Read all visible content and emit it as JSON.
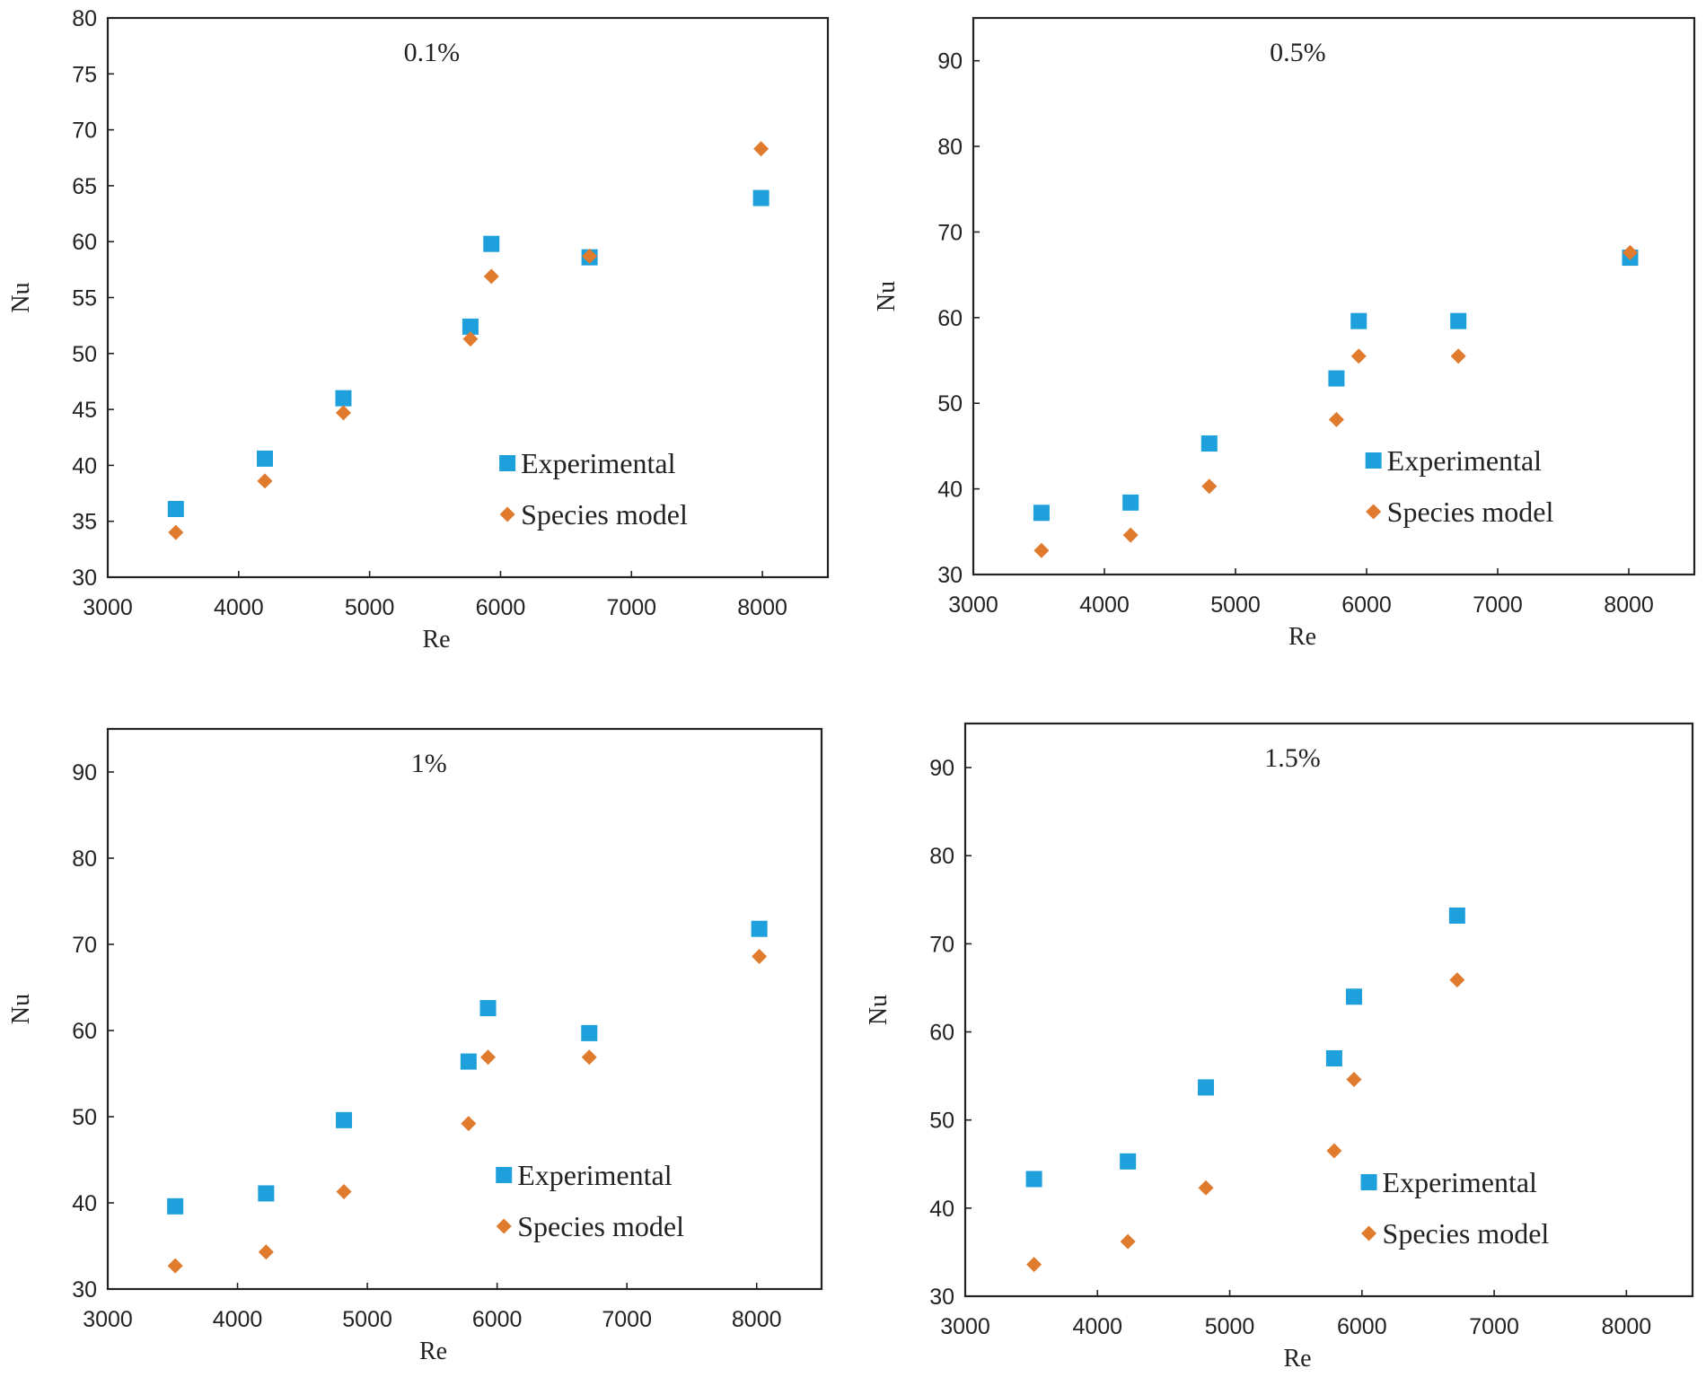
{
  "chart_data": [
    {
      "type": "scatter",
      "title": "0.1%",
      "xlabel": "Re",
      "ylabel": "Nu",
      "xlim": [
        3000,
        8500
      ],
      "ylim": [
        30,
        80
      ],
      "xticks": [
        3000,
        4000,
        5000,
        6000,
        7000,
        8000
      ],
      "yticks": [
        30,
        35,
        40,
        45,
        50,
        55,
        60,
        65,
        70,
        75,
        80
      ],
      "legend_position": "bottom-right",
      "series": [
        {
          "name": "Experimental",
          "marker": "square",
          "color": "#1ea0dc",
          "x": [
            3520,
            4200,
            4800,
            5770,
            5930,
            6680,
            7990
          ],
          "y": [
            36.1,
            40.6,
            46.0,
            52.4,
            59.8,
            58.6,
            63.9
          ]
        },
        {
          "name": "Species model",
          "marker": "diamond",
          "color": "#e07b2e",
          "x": [
            3520,
            4200,
            4800,
            5770,
            5930,
            6680,
            7990
          ],
          "y": [
            34.0,
            38.6,
            44.7,
            51.3,
            56.9,
            58.7,
            68.3
          ]
        }
      ]
    },
    {
      "type": "scatter",
      "title": "0.5%",
      "xlabel": "Re",
      "ylabel": "Nu",
      "xlim": [
        3000,
        8500
      ],
      "ylim": [
        30,
        95
      ],
      "xticks": [
        3000,
        4000,
        5000,
        6000,
        7000,
        8000
      ],
      "yticks": [
        30,
        40,
        50,
        60,
        70,
        80,
        90
      ],
      "legend_position": "bottom-right",
      "series": [
        {
          "name": "Experimental",
          "marker": "square",
          "color": "#1ea0dc",
          "x": [
            3520,
            4200,
            4800,
            5770,
            5940,
            6700,
            8010
          ],
          "y": [
            37.2,
            38.4,
            45.3,
            52.9,
            59.6,
            59.6,
            67.0
          ]
        },
        {
          "name": "Species model",
          "marker": "diamond",
          "color": "#e07b2e",
          "x": [
            3520,
            4200,
            4800,
            5770,
            5940,
            6700,
            8010
          ],
          "y": [
            32.8,
            34.6,
            40.3,
            48.1,
            55.5,
            55.5,
            67.6
          ]
        }
      ]
    },
    {
      "type": "scatter",
      "title": "1%",
      "xlabel": "Re",
      "ylabel": "Nu",
      "xlim": [
        3000,
        8500
      ],
      "ylim": [
        30,
        95
      ],
      "xticks": [
        3000,
        4000,
        5000,
        6000,
        7000,
        8000
      ],
      "yticks": [
        30,
        40,
        50,
        60,
        70,
        80,
        90
      ],
      "legend_position": "bottom-right",
      "series": [
        {
          "name": "Experimental",
          "marker": "square",
          "color": "#1ea0dc",
          "x": [
            3520,
            4220,
            4820,
            5780,
            5930,
            6710,
            8020
          ],
          "y": [
            39.6,
            41.1,
            49.6,
            56.4,
            62.6,
            59.7,
            71.8
          ]
        },
        {
          "name": "Species model",
          "marker": "diamond",
          "color": "#e07b2e",
          "x": [
            3520,
            4220,
            4820,
            5780,
            5930,
            6710,
            8020
          ],
          "y": [
            32.7,
            34.3,
            41.3,
            49.2,
            56.9,
            56.9,
            68.6
          ]
        }
      ]
    },
    {
      "type": "scatter",
      "title": "1.5%",
      "xlabel": "Re",
      "ylabel": "Nu",
      "xlim": [
        3000,
        8500
      ],
      "ylim": [
        30,
        95
      ],
      "xticks": [
        3000,
        4000,
        5000,
        6000,
        7000,
        8000
      ],
      "yticks": [
        30,
        40,
        50,
        60,
        70,
        80,
        90
      ],
      "legend_position": "bottom-right",
      "series": [
        {
          "name": "Experimental",
          "marker": "square",
          "color": "#1ea0dc",
          "x": [
            3520,
            4230,
            4820,
            5790,
            5940,
            6720
          ],
          "y": [
            43.3,
            45.3,
            53.7,
            57.0,
            64.0,
            73.2
          ]
        },
        {
          "name": "Species model",
          "marker": "diamond",
          "color": "#e07b2e",
          "x": [
            3520,
            4230,
            4820,
            5790,
            5940,
            6720
          ],
          "y": [
            33.6,
            36.2,
            42.3,
            46.5,
            54.6,
            65.9
          ]
        }
      ]
    }
  ]
}
